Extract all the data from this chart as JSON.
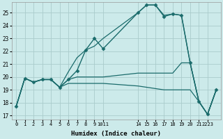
{
  "xlabel": "Humidex (Indice chaleur)",
  "background_color": "#cceaea",
  "grid_color": "#aacccc",
  "line_color": "#1a6b6b",
  "xlim": [
    -0.5,
    23.5
  ],
  "ylim": [
    16.7,
    25.8
  ],
  "yticks": [
    17,
    18,
    19,
    20,
    21,
    22,
    23,
    24,
    25
  ],
  "xtick_positions": [
    0,
    1,
    2,
    3,
    4,
    5,
    6,
    7,
    8,
    9,
    10,
    14,
    15,
    16,
    17,
    18,
    19,
    20,
    21,
    22
  ],
  "xtick_labels": [
    "0",
    "1",
    "2",
    "3",
    "4",
    "5",
    "6",
    "7",
    "8",
    "9",
    "1011",
    "14",
    "15",
    "16",
    "17",
    "18",
    "19",
    "20",
    "21",
    "2223"
  ],
  "series": [
    {
      "x": [
        0,
        1,
        2,
        3,
        4,
        5,
        6,
        7,
        8,
        9,
        10,
        14,
        15,
        16,
        17,
        18,
        19,
        20,
        21,
        22,
        23
      ],
      "y": [
        17.7,
        19.9,
        19.6,
        19.8,
        19.8,
        19.2,
        19.8,
        20.5,
        22.1,
        23.0,
        22.2,
        25.0,
        25.6,
        25.6,
        24.7,
        24.9,
        24.8,
        21.1,
        18.1,
        17.1,
        19.0
      ],
      "marker": "D",
      "markersize": 2.5,
      "linewidth": 1.0
    },
    {
      "x": [
        0,
        1,
        2,
        3,
        4,
        5,
        6,
        7,
        8,
        9,
        10,
        14,
        15,
        16,
        17,
        18,
        19,
        20,
        21,
        22,
        23
      ],
      "y": [
        17.7,
        19.9,
        19.6,
        19.8,
        19.8,
        19.2,
        20.4,
        21.5,
        22.1,
        22.4,
        23.0,
        25.0,
        25.6,
        25.6,
        24.8,
        24.9,
        24.8,
        21.1,
        18.1,
        17.1,
        19.0
      ],
      "marker": null,
      "markersize": 0,
      "linewidth": 0.9
    },
    {
      "x": [
        0,
        1,
        2,
        3,
        4,
        5,
        6,
        7,
        8,
        9,
        10,
        14,
        15,
        16,
        17,
        18,
        19,
        20,
        21,
        22,
        23
      ],
      "y": [
        17.7,
        19.9,
        19.6,
        19.8,
        19.8,
        19.2,
        19.8,
        20.0,
        20.0,
        20.0,
        20.0,
        20.3,
        20.3,
        20.3,
        20.3,
        20.3,
        21.1,
        21.1,
        18.1,
        17.1,
        19.0
      ],
      "marker": null,
      "markersize": 0,
      "linewidth": 0.9
    },
    {
      "x": [
        0,
        1,
        2,
        3,
        4,
        5,
        6,
        7,
        8,
        9,
        10,
        14,
        15,
        16,
        17,
        18,
        19,
        20,
        21,
        22,
        23
      ],
      "y": [
        17.7,
        19.9,
        19.6,
        19.8,
        19.8,
        19.2,
        19.5,
        19.5,
        19.5,
        19.5,
        19.5,
        19.3,
        19.2,
        19.1,
        19.0,
        19.0,
        19.0,
        19.0,
        18.1,
        17.1,
        19.0
      ],
      "marker": null,
      "markersize": 0,
      "linewidth": 0.9
    }
  ]
}
